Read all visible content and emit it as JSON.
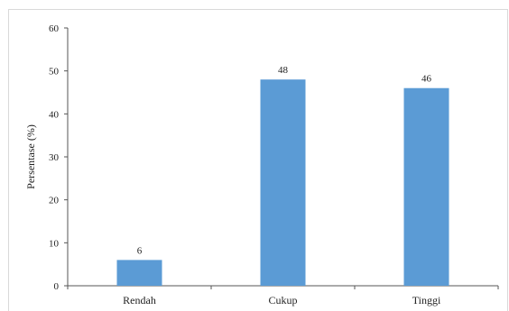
{
  "chart_data": {
    "type": "bar",
    "categories": [
      "Rendah",
      "Cukup",
      "Tinggi"
    ],
    "values": [
      6,
      48,
      46
    ],
    "data_labels": [
      "6",
      "48",
      "46"
    ],
    "ylabel": "Persentase (%)",
    "xlabel": "",
    "ylim": [
      0,
      60
    ],
    "yticks": [
      0,
      10,
      20,
      30,
      40,
      50,
      60
    ],
    "ytick_labels": [
      "0",
      "10",
      "20",
      "30",
      "40",
      "50",
      "60"
    ],
    "grid": false,
    "bar_color": "#5b9bd5"
  }
}
